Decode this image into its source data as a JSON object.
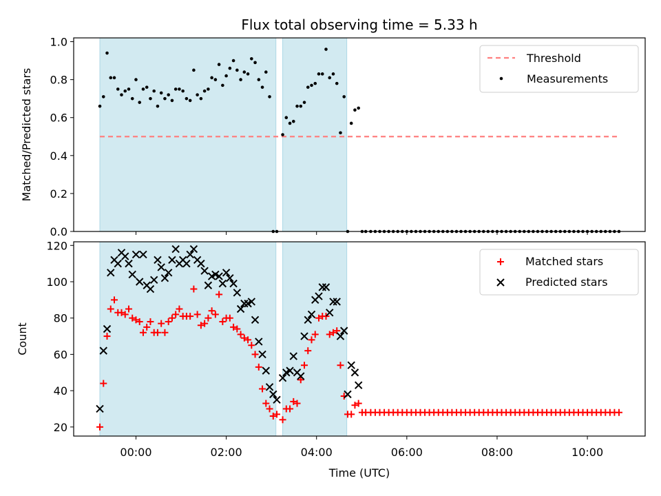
{
  "chart_data": {
    "title": "Flux total observing time = 5.33 h",
    "xlabel": "Time (UTC)",
    "x_tick_labels": [
      "00:00",
      "02:00",
      "04:00",
      "06:00",
      "08:00",
      "10:00"
    ],
    "x_ticks_hours": [
      0,
      2,
      4,
      6,
      8,
      10
    ],
    "xlim_hours": [
      -1.38,
      11.28
    ],
    "shaded_intervals_hours": [
      [
        -0.8,
        3.1
      ],
      [
        3.25,
        4.67
      ]
    ],
    "shade_color": "#add8e6",
    "top": {
      "type": "scatter",
      "ylabel": "Matched/Predicted stars",
      "ylim": [
        0.0,
        1.0
      ],
      "y_tick_labels": [
        "0.0",
        "0.2",
        "0.4",
        "0.6",
        "0.8",
        "1.0"
      ],
      "threshold": {
        "name": "Threshold",
        "value": 0.5,
        "x_range_hours": [
          -0.8,
          10.7
        ],
        "color": "#ff7f7f"
      },
      "series": [
        {
          "name": "Measurements",
          "color": "#000000",
          "x_hours": [
            -0.8,
            -0.72,
            -0.64,
            -0.56,
            -0.48,
            -0.4,
            -0.32,
            -0.24,
            -0.16,
            -0.08,
            0.0,
            0.08,
            0.16,
            0.24,
            0.32,
            0.4,
            0.48,
            0.56,
            0.64,
            0.72,
            0.8,
            0.88,
            0.96,
            1.04,
            1.12,
            1.2,
            1.28,
            1.36,
            1.44,
            1.52,
            1.6,
            1.68,
            1.76,
            1.84,
            1.92,
            2.0,
            2.08,
            2.16,
            2.24,
            2.32,
            2.4,
            2.48,
            2.56,
            2.64,
            2.72,
            2.8,
            2.88,
            2.96,
            3.04,
            3.12,
            3.25,
            3.33,
            3.41,
            3.49,
            3.57,
            3.65,
            3.73,
            3.81,
            3.89,
            3.97,
            4.05,
            4.13,
            4.21,
            4.29,
            4.37,
            4.45,
            4.53,
            4.61,
            4.69,
            4.77,
            4.85,
            4.93,
            5.01,
            5.09,
            5.2,
            5.3,
            5.4,
            5.5,
            5.6,
            5.7,
            5.8,
            5.9,
            6.0,
            6.1,
            6.2,
            6.3,
            6.4,
            6.5,
            6.6,
            6.7,
            6.8,
            6.9,
            7.0,
            7.1,
            7.2,
            7.3,
            7.4,
            7.5,
            7.6,
            7.7,
            7.8,
            7.9,
            8.0,
            8.1,
            8.2,
            8.3,
            8.4,
            8.5,
            8.6,
            8.7,
            8.8,
            8.9,
            9.0,
            9.1,
            9.2,
            9.3,
            9.4,
            9.5,
            9.6,
            9.7,
            9.8,
            9.9,
            10.0,
            10.1,
            10.2,
            10.3,
            10.4,
            10.5,
            10.6,
            10.7
          ],
          "y": [
            0.66,
            0.71,
            0.94,
            0.81,
            0.81,
            0.75,
            0.72,
            0.74,
            0.75,
            0.7,
            0.8,
            0.68,
            0.75,
            0.76,
            0.7,
            0.74,
            0.66,
            0.73,
            0.7,
            0.72,
            0.69,
            0.75,
            0.75,
            0.74,
            0.7,
            0.69,
            0.85,
            0.72,
            0.7,
            0.74,
            0.75,
            0.81,
            0.8,
            0.88,
            0.77,
            0.82,
            0.86,
            0.9,
            0.85,
            0.8,
            0.84,
            0.83,
            0.91,
            0.89,
            0.8,
            0.76,
            0.84,
            0.71,
            0.0,
            0.0,
            0.51,
            0.6,
            0.57,
            0.58,
            0.66,
            0.66,
            0.68,
            0.76,
            0.77,
            0.78,
            0.83,
            0.83,
            0.96,
            0.81,
            0.83,
            0.78,
            0.52,
            0.71,
            0.0,
            0.57,
            0.64,
            0.65,
            0.0,
            0.0,
            0.0,
            0.0,
            0.0,
            0.0,
            0.0,
            0.0,
            0.0,
            0.0,
            0.0,
            0.0,
            0.0,
            0.0,
            0.0,
            0.0,
            0.0,
            0.0,
            0.0,
            0.0,
            0.0,
            0.0,
            0.0,
            0.0,
            0.0,
            0.0,
            0.0,
            0.0,
            0.0,
            0.0,
            0.0,
            0.0,
            0.0,
            0.0,
            0.0,
            0.0,
            0.0,
            0.0,
            0.0,
            0.0,
            0.0,
            0.0,
            0.0,
            0.0,
            0.0,
            0.0,
            0.0,
            0.0,
            0.0,
            0.0,
            0.0,
            0.0,
            0.0,
            0.0,
            0.0,
            0.0,
            0.0,
            0.0,
            0.0,
            0.0
          ]
        }
      ],
      "legend": {
        "placement": "top-right",
        "entries": [
          "Threshold",
          "Measurements"
        ]
      }
    },
    "bottom": {
      "type": "scatter",
      "ylabel": "Count",
      "ylim": [
        15,
        122
      ],
      "y_tick_labels": [
        "20",
        "40",
        "60",
        "80",
        "100",
        "120"
      ],
      "y_ticks": [
        20,
        40,
        60,
        80,
        100,
        120
      ],
      "series": [
        {
          "name": "Matched stars",
          "color": "#ff0000",
          "marker": "plus",
          "x_hours": [
            -0.8,
            -0.72,
            -0.64,
            -0.56,
            -0.48,
            -0.4,
            -0.32,
            -0.24,
            -0.16,
            -0.08,
            0.0,
            0.08,
            0.16,
            0.24,
            0.32,
            0.4,
            0.48,
            0.56,
            0.64,
            0.72,
            0.8,
            0.88,
            0.96,
            1.04,
            1.12,
            1.2,
            1.28,
            1.36,
            1.44,
            1.52,
            1.6,
            1.68,
            1.76,
            1.84,
            1.92,
            2.0,
            2.08,
            2.16,
            2.24,
            2.32,
            2.4,
            2.48,
            2.56,
            2.64,
            2.72,
            2.8,
            2.88,
            2.96,
            3.04,
            3.12,
            3.25,
            3.33,
            3.41,
            3.49,
            3.57,
            3.65,
            3.73,
            3.81,
            3.89,
            3.97,
            4.05,
            4.13,
            4.21,
            4.29,
            4.37,
            4.45,
            4.53,
            4.61,
            4.69,
            4.77,
            4.85,
            4.93,
            5.01,
            5.09,
            5.2,
            5.3,
            5.4,
            5.5,
            5.6,
            5.7,
            5.8,
            5.9,
            6.0,
            6.1,
            6.2,
            6.3,
            6.4,
            6.5,
            6.6,
            6.7,
            6.8,
            6.9,
            7.0,
            7.1,
            7.2,
            7.3,
            7.4,
            7.5,
            7.6,
            7.7,
            7.8,
            7.9,
            8.0,
            8.1,
            8.2,
            8.3,
            8.4,
            8.5,
            8.6,
            8.7,
            8.8,
            8.9,
            9.0,
            9.1,
            9.2,
            9.3,
            9.4,
            9.5,
            9.6,
            9.7,
            9.8,
            9.9,
            10.0,
            10.1,
            10.2,
            10.3,
            10.4,
            10.5,
            10.6,
            10.7
          ],
          "y": [
            20,
            44,
            70,
            85,
            90,
            83,
            83,
            82,
            85,
            80,
            79,
            78,
            72,
            75,
            78,
            72,
            72,
            77,
            72,
            78,
            80,
            82,
            85,
            81,
            81,
            81,
            96,
            82,
            76,
            77,
            80,
            84,
            82,
            93,
            78,
            80,
            80,
            75,
            74,
            71,
            69,
            68,
            65,
            60,
            53,
            41,
            33,
            30,
            26,
            27,
            24,
            30,
            30,
            34,
            33,
            46,
            54,
            62,
            68,
            71,
            80,
            81,
            81,
            71,
            72,
            73,
            54,
            37,
            27,
            27,
            32,
            33,
            28,
            28,
            28,
            28,
            28,
            28,
            28,
            28,
            28,
            28,
            28,
            28,
            28,
            28,
            28,
            28,
            28,
            28,
            28,
            28,
            28,
            28,
            28,
            28,
            28,
            28,
            28,
            28,
            28,
            28,
            28,
            28,
            28,
            28,
            28,
            28,
            28,
            28,
            28,
            28,
            28,
            28,
            28,
            28,
            28,
            28,
            28,
            28,
            28,
            28,
            28,
            28,
            28,
            28,
            28,
            28,
            28,
            28,
            28,
            28
          ]
        },
        {
          "name": "Predicted stars",
          "color": "#000000",
          "marker": "x",
          "x_hours": [
            -0.8,
            -0.72,
            -0.64,
            -0.56,
            -0.48,
            -0.4,
            -0.32,
            -0.24,
            -0.16,
            -0.08,
            0.0,
            0.08,
            0.16,
            0.24,
            0.32,
            0.4,
            0.48,
            0.56,
            0.64,
            0.72,
            0.8,
            0.88,
            0.96,
            1.04,
            1.12,
            1.2,
            1.28,
            1.36,
            1.44,
            1.52,
            1.6,
            1.68,
            1.76,
            1.84,
            1.92,
            2.0,
            2.08,
            2.16,
            2.24,
            2.32,
            2.4,
            2.48,
            2.56,
            2.64,
            2.72,
            2.8,
            2.88,
            2.96,
            3.04,
            3.12,
            3.25,
            3.33,
            3.41,
            3.49,
            3.57,
            3.65,
            3.73,
            3.81,
            3.89,
            3.97,
            4.05,
            4.13,
            4.21,
            4.29,
            4.37,
            4.45,
            4.53,
            4.61,
            4.69,
            4.77,
            4.85,
            4.93
          ],
          "y": [
            30,
            62,
            74,
            105,
            112,
            110,
            116,
            114,
            110,
            104,
            115,
            100,
            115,
            98,
            96,
            101,
            112,
            108,
            102,
            105,
            112,
            118,
            110,
            112,
            110,
            115,
            118,
            112,
            110,
            106,
            98,
            103,
            104,
            103,
            99,
            105,
            102,
            99,
            94,
            85,
            88,
            88,
            89,
            79,
            67,
            60,
            51,
            42,
            38,
            35,
            47,
            50,
            51,
            59,
            50,
            48,
            70,
            79,
            82,
            90,
            92,
            97,
            97,
            83,
            89,
            89,
            70,
            73,
            38,
            54,
            50,
            43
          ]
        }
      ],
      "legend": {
        "placement": "top-right",
        "entries": [
          "Matched stars",
          "Predicted stars"
        ]
      }
    }
  }
}
